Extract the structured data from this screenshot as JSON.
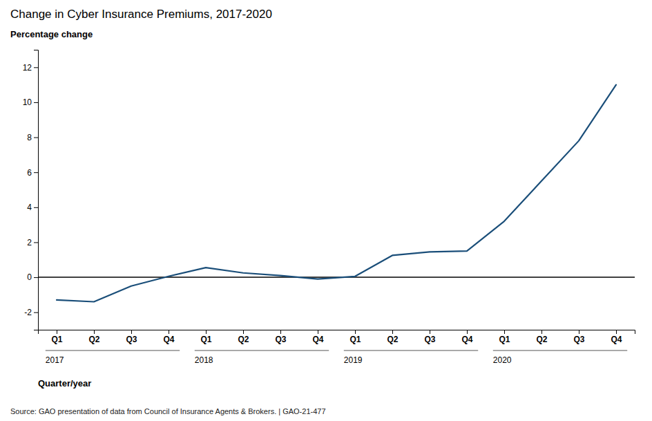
{
  "chart_data": {
    "type": "line",
    "title": "Change in Cyber Insurance Premiums, 2017-2020",
    "y_label": "Percentage change",
    "x_label": "Quarter/year",
    "categories": [
      "Q1",
      "Q2",
      "Q3",
      "Q4",
      "Q1",
      "Q2",
      "Q3",
      "Q4",
      "Q1",
      "Q2",
      "Q3",
      "Q4",
      "Q1",
      "Q2",
      "Q3",
      "Q4"
    ],
    "group_labels": [
      "2017",
      "2018",
      "2019",
      "2020"
    ],
    "values": [
      -1.3,
      -1.4,
      -0.5,
      0.05,
      0.55,
      0.25,
      0.1,
      -0.1,
      0.05,
      1.25,
      1.45,
      1.5,
      3.2,
      5.5,
      7.8,
      11.0
    ],
    "color": "#1a4e79",
    "ylim": [
      -3,
      13
    ],
    "yticks": [
      -2,
      0,
      2,
      4,
      6,
      8,
      10,
      12
    ],
    "grid": false,
    "annotations": [
      "Source: GAO presentation of data from Council of Insurance Agents & Brokers.  |  GAO-21-477"
    ]
  }
}
